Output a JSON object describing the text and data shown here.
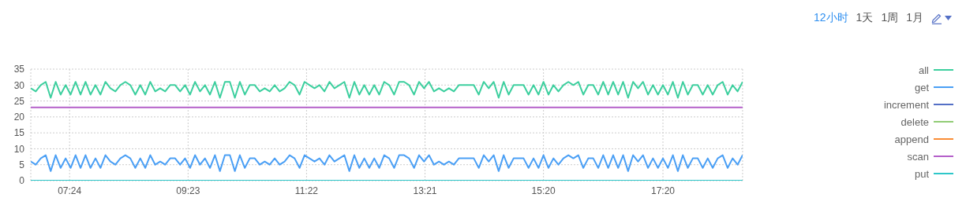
{
  "chart_data": {
    "type": "line",
    "annotations": [
      "12小时",
      "1天",
      "1周",
      "1月"
    ],
    "x": [
      6.75,
      6.8333,
      6.9167,
      7,
      7.0833,
      7.1667,
      7.25,
      7.3333,
      7.4167,
      7.5,
      7.5833,
      7.6667,
      7.75,
      7.8333,
      7.9167,
      8,
      8.0833,
      8.1667,
      8.25,
      8.3333,
      8.4167,
      8.5,
      8.5833,
      8.6667,
      8.75,
      8.8333,
      8.9167,
      9,
      9.0833,
      9.1667,
      9.25,
      9.3333,
      9.4167,
      9.5,
      9.5833,
      9.6667,
      9.75,
      9.8333,
      9.9167,
      10,
      10.0833,
      10.1667,
      10.25,
      10.3333,
      10.4167,
      10.5,
      10.5833,
      10.6667,
      10.75,
      10.8333,
      10.9167,
      11,
      11.0833,
      11.1667,
      11.25,
      11.3333,
      11.4167,
      11.5,
      11.5833,
      11.6667,
      11.75,
      11.8333,
      11.9167,
      12,
      12.0833,
      12.1667,
      12.25,
      12.3333,
      12.4167,
      12.5,
      12.5833,
      12.6667,
      12.75,
      12.8333,
      12.9167,
      13,
      13.0833,
      13.1667,
      13.25,
      13.3333,
      13.4167,
      13.5,
      13.5833,
      13.6667,
      13.75,
      13.8333,
      13.9167,
      14,
      14.0833,
      14.1667,
      14.25,
      14.3333,
      14.4167,
      14.5,
      14.5833,
      14.6667,
      14.75,
      14.8333,
      14.9167,
      15,
      15.0833,
      15.1667,
      15.25,
      15.3333,
      15.4167,
      15.5,
      15.5833,
      15.6667,
      15.75,
      15.8333,
      15.9167,
      16,
      16.0833,
      16.1667,
      16.25,
      16.3333,
      16.4167,
      16.5,
      16.5833,
      16.6667,
      16.75,
      16.8333,
      16.9167,
      17,
      17.0833,
      17.1667,
      17.25,
      17.3333,
      17.4167,
      17.5,
      17.5833,
      17.6667,
      17.75,
      17.8333,
      17.9167,
      18,
      18.0833,
      18.1667,
      18.25,
      18.3333,
      18.4167,
      18.5,
      18.5833,
      18.6667
    ],
    "series": [
      {
        "name": "all",
        "color": "#3ccf9e",
        "values": [
          29,
          28,
          30,
          31,
          26,
          31,
          27,
          30,
          27,
          31,
          27,
          31,
          27,
          30,
          27,
          31,
          29,
          28,
          30,
          31,
          30,
          27,
          30,
          27,
          31,
          28,
          29,
          28,
          30,
          30,
          28,
          30,
          27,
          31,
          28,
          30,
          27,
          31,
          26,
          31,
          31,
          26,
          31,
          27,
          30,
          30,
          28,
          29,
          28,
          30,
          28,
          29,
          31,
          30,
          27,
          31,
          30,
          29,
          30,
          28,
          31,
          29,
          30,
          31,
          26,
          31,
          27,
          30,
          27,
          30,
          27,
          31,
          30,
          27,
          31,
          31,
          30,
          27,
          31,
          29,
          31,
          28,
          29,
          28,
          29,
          28,
          30,
          30,
          30,
          30,
          27,
          31,
          29,
          31,
          26,
          31,
          27,
          30,
          30,
          30,
          27,
          30,
          27,
          31,
          27,
          30,
          28,
          30,
          31,
          30,
          31,
          27,
          30,
          30,
          27,
          31,
          27,
          31,
          27,
          31,
          26,
          31,
          29,
          31,
          27,
          30,
          27,
          30,
          27,
          31,
          26,
          31,
          27,
          30,
          30,
          27,
          30,
          27,
          30,
          31,
          27,
          30,
          28,
          31
        ]
      },
      {
        "name": "get",
        "color": "#4a9ff5",
        "values": [
          6,
          5,
          7,
          8,
          3,
          8,
          4,
          7,
          4,
          8,
          4,
          8,
          4,
          7,
          4,
          8,
          6,
          5,
          7,
          8,
          7,
          4,
          7,
          4,
          8,
          5,
          6,
          5,
          7,
          7,
          5,
          7,
          4,
          8,
          5,
          7,
          4,
          8,
          3,
          8,
          8,
          3,
          8,
          4,
          7,
          7,
          5,
          6,
          5,
          7,
          5,
          6,
          8,
          7,
          4,
          8,
          7,
          6,
          7,
          5,
          8,
          6,
          7,
          8,
          3,
          8,
          4,
          7,
          4,
          7,
          4,
          8,
          7,
          4,
          8,
          8,
          7,
          4,
          8,
          6,
          8,
          5,
          6,
          5,
          6,
          5,
          7,
          7,
          7,
          7,
          4,
          8,
          6,
          8,
          3,
          8,
          4,
          7,
          7,
          7,
          4,
          7,
          4,
          8,
          4,
          7,
          5,
          7,
          8,
          7,
          8,
          4,
          7,
          7,
          4,
          8,
          4,
          8,
          4,
          8,
          3,
          8,
          6,
          8,
          4,
          7,
          4,
          7,
          4,
          8,
          3,
          8,
          4,
          7,
          7,
          4,
          7,
          4,
          7,
          8,
          4,
          7,
          5,
          8
        ]
      },
      {
        "name": "increment",
        "color": "#5470c6",
        "values": [
          null,
          null,
          null,
          null,
          null,
          null,
          null,
          null,
          null,
          null,
          null,
          null,
          null,
          null,
          null,
          null,
          null,
          null,
          null,
          null,
          null,
          null,
          null,
          null,
          null,
          null,
          null,
          null,
          null,
          null,
          null,
          null,
          null,
          null,
          null,
          null,
          null,
          null,
          null,
          null,
          null,
          null,
          null,
          null,
          null,
          null,
          null,
          null,
          null,
          null,
          null,
          null,
          null,
          null,
          null,
          null,
          null,
          null,
          null,
          null,
          null,
          null,
          null,
          null,
          null,
          null,
          null,
          null,
          null,
          null,
          null,
          null,
          null,
          null,
          null,
          null,
          null,
          null,
          null,
          null,
          null,
          null,
          null,
          null,
          null,
          null,
          null,
          null,
          null,
          null,
          null,
          null,
          null,
          null,
          null,
          null,
          null,
          null,
          null,
          null,
          null,
          null,
          null,
          null,
          null,
          null,
          null,
          null,
          null,
          null,
          null,
          null,
          null,
          null,
          null,
          null,
          null,
          null,
          null,
          null,
          null,
          null,
          null,
          null,
          null,
          null,
          null,
          null,
          null,
          null,
          null,
          null,
          null,
          null,
          null,
          null,
          null,
          null,
          null,
          null,
          null,
          null,
          null,
          null
        ]
      },
      {
        "name": "delete",
        "color": "#91cc75",
        "values": [
          null,
          null,
          null,
          null,
          null,
          null,
          null,
          null,
          null,
          null,
          null,
          null,
          null,
          null,
          null,
          null,
          null,
          null,
          null,
          null,
          null,
          null,
          null,
          null,
          null,
          null,
          null,
          null,
          null,
          null,
          null,
          null,
          null,
          null,
          null,
          null,
          null,
          null,
          null,
          null,
          null,
          null,
          null,
          null,
          null,
          null,
          null,
          null,
          null,
          null,
          null,
          null,
          null,
          null,
          null,
          null,
          null,
          null,
          null,
          null,
          null,
          null,
          null,
          null,
          null,
          null,
          null,
          null,
          null,
          null,
          null,
          null,
          null,
          null,
          null,
          null,
          null,
          null,
          null,
          null,
          null,
          null,
          null,
          null,
          null,
          null,
          null,
          null,
          null,
          null,
          null,
          null,
          null,
          null,
          null,
          null,
          null,
          null,
          null,
          null,
          null,
          null,
          null,
          null,
          null,
          null,
          null,
          null,
          null,
          null,
          null,
          null,
          null,
          null,
          null,
          null,
          null,
          null,
          null,
          null,
          null,
          null,
          null,
          null,
          null,
          null,
          null,
          null,
          null,
          null,
          null,
          null,
          null,
          null,
          null,
          null,
          null,
          null,
          null,
          null,
          null,
          null,
          null,
          null
        ]
      },
      {
        "name": "append",
        "color": "#fa8c35",
        "values": [
          null,
          null,
          null,
          null,
          null,
          null,
          null,
          null,
          null,
          null,
          null,
          null,
          null,
          null,
          null,
          null,
          null,
          null,
          null,
          null,
          null,
          null,
          null,
          null,
          null,
          null,
          null,
          null,
          null,
          null,
          null,
          null,
          null,
          null,
          null,
          null,
          null,
          null,
          null,
          null,
          null,
          null,
          null,
          null,
          null,
          null,
          null,
          null,
          null,
          null,
          null,
          null,
          null,
          null,
          null,
          null,
          null,
          null,
          null,
          null,
          null,
          null,
          null,
          null,
          null,
          null,
          null,
          null,
          null,
          null,
          null,
          null,
          null,
          null,
          null,
          null,
          null,
          null,
          null,
          null,
          null,
          null,
          null,
          null,
          null,
          null,
          null,
          null,
          null,
          null,
          null,
          null,
          null,
          null,
          null,
          null,
          null,
          null,
          null,
          null,
          null,
          null,
          null,
          null,
          null,
          null,
          null,
          null,
          null,
          null,
          null,
          null,
          null,
          null,
          null,
          null,
          null,
          null,
          null,
          null,
          null,
          null,
          null,
          null,
          null,
          null,
          null,
          null,
          null,
          null,
          null,
          null,
          null,
          null,
          null,
          null,
          null,
          null,
          null,
          null,
          null,
          null,
          null,
          null
        ]
      },
      {
        "name": "scan",
        "color": "#b45fc9",
        "values": [
          23,
          23,
          23,
          23,
          23,
          23,
          23,
          23,
          23,
          23,
          23,
          23,
          23,
          23,
          23,
          23,
          23,
          23,
          23,
          23,
          23,
          23,
          23,
          23,
          23,
          23,
          23,
          23,
          23,
          23,
          23,
          23,
          23,
          23,
          23,
          23,
          23,
          23,
          23,
          23,
          23,
          23,
          23,
          23,
          23,
          23,
          23,
          23,
          23,
          23,
          23,
          23,
          23,
          23,
          23,
          23,
          23,
          23,
          23,
          23,
          23,
          23,
          23,
          23,
          23,
          23,
          23,
          23,
          23,
          23,
          23,
          23,
          23,
          23,
          23,
          23,
          23,
          23,
          23,
          23,
          23,
          23,
          23,
          23,
          23,
          23,
          23,
          23,
          23,
          23,
          23,
          23,
          23,
          23,
          23,
          23,
          23,
          23,
          23,
          23,
          23,
          23,
          23,
          23,
          23,
          23,
          23,
          23,
          23,
          23,
          23,
          23,
          23,
          23,
          23,
          23,
          23,
          23,
          23,
          23,
          23,
          23,
          23,
          23,
          23,
          23,
          23,
          23,
          23,
          23,
          23,
          23,
          23,
          23,
          23,
          23,
          23,
          23,
          23,
          23,
          23,
          23,
          23,
          23
        ]
      },
      {
        "name": "put",
        "color": "#2ec7c9",
        "values": [
          0,
          0,
          0,
          0,
          0,
          0,
          0,
          0,
          0,
          0,
          0,
          0,
          0,
          0,
          0,
          0,
          0,
          0,
          0,
          0,
          0,
          0,
          0,
          0,
          0,
          0,
          0,
          0,
          0,
          0,
          0,
          0,
          0,
          0,
          0,
          0,
          0,
          0,
          0,
          0,
          0,
          0,
          0,
          0,
          0,
          0,
          0,
          0,
          0,
          0,
          0,
          0,
          0,
          0,
          0,
          0,
          0,
          0,
          0,
          0,
          0,
          0,
          0,
          0,
          0,
          0,
          0,
          0,
          0,
          0,
          0,
          0,
          0,
          0,
          0,
          0,
          0,
          0,
          0,
          0,
          0,
          0,
          0,
          0,
          0,
          0,
          0,
          0,
          0,
          0,
          0,
          0,
          0,
          0,
          0,
          0,
          0,
          0,
          0,
          0,
          0,
          0,
          0,
          0,
          0,
          0,
          0,
          0,
          0,
          0,
          0,
          0,
          0,
          0,
          0,
          0,
          0,
          0,
          0,
          0,
          0,
          0,
          0,
          0,
          0,
          0,
          0,
          0,
          0,
          0,
          0,
          0,
          0,
          0,
          0,
          0,
          0,
          0,
          0,
          0,
          0,
          0,
          0,
          0
        ]
      }
    ],
    "xlim": [
      6.75,
      18.6667
    ],
    "xticks": [
      {
        "value": 7.4,
        "label": "07:24"
      },
      {
        "value": 9.3833,
        "label": "09:23"
      },
      {
        "value": 11.3667,
        "label": "11:22"
      },
      {
        "value": 13.35,
        "label": "13:21"
      },
      {
        "value": 15.3333,
        "label": "15:20"
      },
      {
        "value": 17.3333,
        "label": "17:20"
      }
    ],
    "ylim": [
      0,
      35
    ],
    "yticks": [
      0,
      5,
      10,
      15,
      20,
      25,
      30,
      35
    ],
    "grid": true,
    "legend": "right"
  }
}
